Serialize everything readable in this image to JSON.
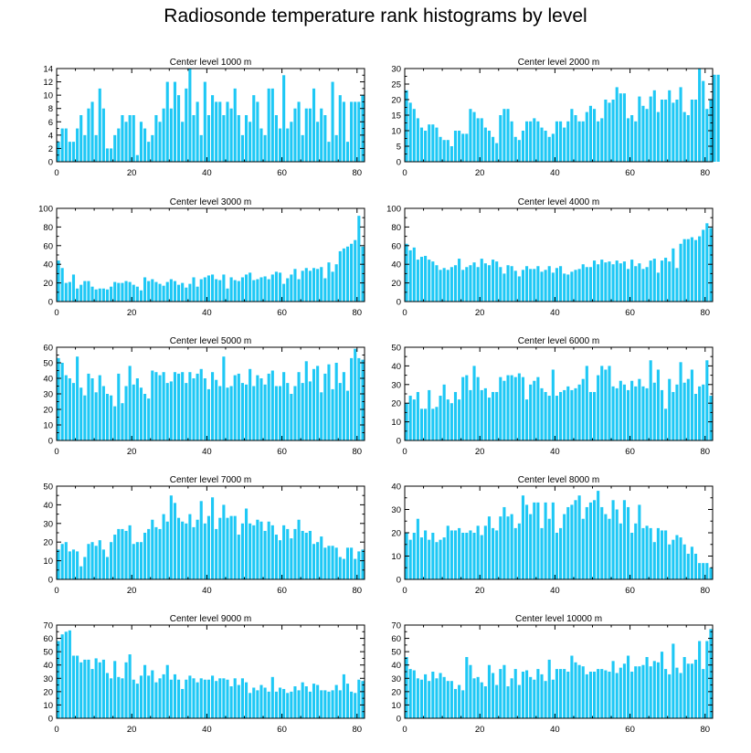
{
  "figure": {
    "title": "Radiosonde temperature rank histograms by level",
    "bar_color": "#1ec8f5",
    "axis_color": "#000000"
  },
  "chart_data": [
    {
      "type": "bar",
      "title": "Center level 1000 m",
      "x_start": 0,
      "ylim": [
        0,
        14
      ],
      "yticks": [
        0,
        2,
        4,
        6,
        8,
        10,
        12,
        14
      ],
      "xlim": [
        0,
        82
      ],
      "xticks": [
        0,
        20,
        40,
        60,
        80
      ],
      "xlabel": "",
      "ylabel": "",
      "values": [
        3,
        5,
        5,
        3,
        3,
        5,
        7,
        4,
        8,
        9,
        4,
        11,
        8,
        2,
        2,
        4,
        5,
        7,
        6,
        7,
        7,
        1,
        6,
        5,
        3,
        4,
        7,
        6,
        8,
        12,
        8,
        12,
        10,
        6,
        11,
        14,
        7,
        9,
        4,
        12,
        7,
        10,
        9,
        9,
        7,
        9,
        8,
        11,
        7,
        4,
        7,
        6,
        10,
        9,
        5,
        4,
        11,
        11,
        7,
        5,
        13,
        5,
        6,
        8,
        9,
        4,
        8,
        8,
        11,
        6,
        8,
        7,
        3,
        12,
        4,
        10,
        9,
        3,
        9,
        9,
        9,
        10
      ]
    },
    {
      "type": "bar",
      "title": "Center level 2000 m",
      "x_start": 0,
      "ylim": [
        0,
        30
      ],
      "yticks": [
        0,
        5,
        10,
        15,
        20,
        25,
        30
      ],
      "xlim": [
        0,
        82
      ],
      "xticks": [
        0,
        20,
        40,
        60,
        80
      ],
      "xlabel": "",
      "ylabel": "",
      "values": [
        23,
        19,
        17,
        14,
        11,
        10,
        12,
        12,
        11,
        8,
        7,
        7,
        5,
        10,
        10,
        9,
        9,
        17,
        16,
        14,
        14,
        11,
        10,
        8,
        6,
        15,
        17,
        17,
        13,
        8,
        7,
        10,
        13,
        13,
        14,
        13,
        11,
        10,
        8,
        9,
        13,
        13,
        11,
        13,
        17,
        15,
        13,
        13,
        16,
        18,
        17,
        13,
        14,
        20,
        19,
        20,
        24,
        22,
        22,
        14,
        15,
        13,
        21,
        18,
        17,
        21,
        23,
        16,
        20,
        20,
        23,
        19,
        20,
        24,
        16,
        15,
        20,
        20,
        30,
        26,
        17,
        20,
        28,
        28
      ]
    },
    {
      "type": "bar",
      "title": "Center level 3000 m",
      "x_start": 0,
      "ylim": [
        0,
        100
      ],
      "yticks": [
        0,
        20,
        40,
        60,
        80,
        100
      ],
      "xlim": [
        0,
        82
      ],
      "xticks": [
        0,
        20,
        40,
        60,
        80
      ],
      "xlabel": "",
      "ylabel": "",
      "values": [
        44,
        36,
        20,
        21,
        29,
        14,
        18,
        22,
        22,
        16,
        13,
        14,
        14,
        13,
        16,
        21,
        20,
        20,
        22,
        21,
        18,
        16,
        12,
        26,
        22,
        24,
        21,
        19,
        17,
        21,
        24,
        22,
        18,
        20,
        15,
        19,
        26,
        16,
        24,
        26,
        28,
        29,
        24,
        23,
        29,
        14,
        26,
        23,
        22,
        26,
        29,
        31,
        23,
        24,
        26,
        27,
        24,
        29,
        32,
        31,
        19,
        25,
        29,
        35,
        24,
        33,
        36,
        33,
        36,
        35,
        37,
        25,
        42,
        32,
        40,
        54,
        57,
        59,
        62,
        66,
        92,
        59
      ]
    },
    {
      "type": "bar",
      "title": "Center level 4000 m",
      "x_start": 0,
      "ylim": [
        0,
        100
      ],
      "yticks": [
        0,
        20,
        40,
        60,
        80,
        100
      ],
      "xlim": [
        0,
        82
      ],
      "xticks": [
        0,
        20,
        40,
        60,
        80
      ],
      "xlabel": "",
      "ylabel": "",
      "values": [
        62,
        55,
        58,
        45,
        48,
        49,
        45,
        43,
        39,
        34,
        36,
        34,
        37,
        39,
        46,
        34,
        37,
        39,
        42,
        37,
        46,
        41,
        39,
        45,
        43,
        37,
        30,
        39,
        38,
        33,
        27,
        34,
        38,
        35,
        35,
        38,
        32,
        34,
        38,
        31,
        36,
        38,
        30,
        29,
        32,
        34,
        35,
        40,
        37,
        37,
        44,
        40,
        45,
        42,
        43,
        40,
        44,
        41,
        43,
        35,
        45,
        38,
        41,
        35,
        37,
        44,
        46,
        31,
        44,
        47,
        43,
        57,
        36,
        62,
        67,
        67,
        69,
        66,
        70,
        77,
        84,
        79
      ]
    },
    {
      "type": "bar",
      "title": "Center level 5000 m",
      "x_start": 0,
      "ylim": [
        0,
        60
      ],
      "yticks": [
        0,
        10,
        20,
        30,
        40,
        50,
        60
      ],
      "xlim": [
        0,
        82
      ],
      "xticks": [
        0,
        20,
        40,
        60,
        80
      ],
      "xlabel": "",
      "ylabel": "",
      "values": [
        53,
        50,
        42,
        40,
        37,
        54,
        34,
        29,
        43,
        40,
        31,
        42,
        35,
        30,
        29,
        22,
        43,
        24,
        35,
        48,
        36,
        40,
        34,
        30,
        27,
        45,
        44,
        42,
        44,
        37,
        38,
        44,
        43,
        44,
        37,
        44,
        40,
        43,
        46,
        40,
        33,
        44,
        39,
        35,
        54,
        34,
        35,
        42,
        43,
        37,
        36,
        46,
        35,
        42,
        40,
        36,
        43,
        45,
        35,
        35,
        44,
        37,
        30,
        35,
        44,
        37,
        51,
        38,
        46,
        48,
        31,
        43,
        49,
        33,
        50,
        37,
        44,
        32,
        53,
        59,
        53,
        52
      ]
    },
    {
      "type": "bar",
      "title": "Center level 6000 m",
      "x_start": 0,
      "ylim": [
        0,
        50
      ],
      "yticks": [
        0,
        10,
        20,
        30,
        40,
        50
      ],
      "xlim": [
        0,
        82
      ],
      "xticks": [
        0,
        20,
        40,
        60,
        80
      ],
      "xlabel": "",
      "ylabel": "",
      "values": [
        20,
        24,
        22,
        26,
        17,
        17,
        27,
        17,
        18,
        24,
        30,
        22,
        20,
        26,
        22,
        34,
        35,
        27,
        40,
        34,
        27,
        28,
        23,
        26,
        26,
        34,
        32,
        35,
        35,
        34,
        36,
        34,
        22,
        30,
        32,
        34,
        28,
        26,
        24,
        38,
        24,
        26,
        27,
        29,
        27,
        28,
        30,
        33,
        40,
        26,
        26,
        35,
        40,
        38,
        40,
        29,
        28,
        32,
        30,
        27,
        32,
        29,
        33,
        29,
        28,
        43,
        31,
        38,
        27,
        17,
        33,
        26,
        30,
        42,
        31,
        33,
        38,
        25,
        29,
        30,
        43,
        24
      ]
    },
    {
      "type": "bar",
      "title": "Center level 7000 m",
      "x_start": 0,
      "ylim": [
        0,
        50
      ],
      "yticks": [
        0,
        10,
        20,
        30,
        40,
        50
      ],
      "xlim": [
        0,
        82
      ],
      "xticks": [
        0,
        20,
        40,
        60,
        80
      ],
      "xlabel": "",
      "ylabel": "",
      "values": [
        16,
        19,
        20,
        15,
        16,
        15,
        7,
        12,
        19,
        20,
        18,
        21,
        16,
        12,
        20,
        24,
        27,
        27,
        26,
        29,
        19,
        20,
        20,
        25,
        27,
        32,
        28,
        27,
        35,
        31,
        45,
        41,
        33,
        31,
        30,
        35,
        28,
        32,
        42,
        30,
        34,
        44,
        27,
        33,
        40,
        33,
        34,
        34,
        24,
        30,
        38,
        30,
        29,
        32,
        31,
        26,
        31,
        29,
        24,
        21,
        29,
        27,
        22,
        27,
        32,
        26,
        25,
        26,
        19,
        20,
        23,
        17,
        18,
        18,
        17,
        12,
        11,
        17,
        17,
        11,
        15,
        16
      ]
    },
    {
      "type": "bar",
      "title": "Center level 8000 m",
      "x_start": 0,
      "ylim": [
        0,
        40
      ],
      "yticks": [
        0,
        10,
        20,
        30,
        40
      ],
      "xlim": [
        0,
        82
      ],
      "xticks": [
        0,
        20,
        40,
        60,
        80
      ],
      "xlabel": "",
      "ylabel": "",
      "values": [
        20,
        17,
        20,
        26,
        18,
        21,
        17,
        20,
        16,
        17,
        18,
        23,
        21,
        21,
        22,
        20,
        20,
        21,
        20,
        23,
        19,
        23,
        27,
        22,
        21,
        27,
        31,
        27,
        28,
        22,
        24,
        36,
        32,
        28,
        33,
        33,
        22,
        33,
        26,
        33,
        20,
        22,
        28,
        31,
        32,
        34,
        36,
        26,
        31,
        33,
        34,
        38,
        31,
        28,
        26,
        34,
        30,
        24,
        34,
        31,
        20,
        24,
        32,
        22,
        23,
        22,
        16,
        22,
        21,
        21,
        15,
        17,
        19,
        18,
        15,
        11,
        14,
        11,
        7,
        7,
        7,
        5
      ]
    },
    {
      "type": "bar",
      "title": "Center level 9000 m",
      "x_start": 0,
      "ylim": [
        0,
        70
      ],
      "yticks": [
        0,
        10,
        20,
        30,
        40,
        50,
        60,
        70
      ],
      "xlim": [
        0,
        82
      ],
      "xticks": [
        0,
        20,
        40,
        60,
        80
      ],
      "xlabel": "",
      "ylabel": "",
      "values": [
        58,
        63,
        65,
        66,
        47,
        47,
        42,
        44,
        44,
        37,
        45,
        42,
        44,
        34,
        30,
        43,
        31,
        30,
        42,
        48,
        29,
        26,
        32,
        40,
        32,
        36,
        27,
        30,
        33,
        40,
        29,
        33,
        29,
        22,
        29,
        32,
        30,
        27,
        30,
        29,
        29,
        32,
        28,
        30,
        30,
        29,
        24,
        30,
        25,
        30,
        27,
        19,
        23,
        21,
        25,
        23,
        20,
        31,
        20,
        23,
        22,
        19,
        20,
        24,
        21,
        27,
        24,
        20,
        26,
        25,
        21,
        21,
        20,
        21,
        25,
        21,
        33,
        26,
        20,
        19,
        29,
        28
      ]
    },
    {
      "type": "bar",
      "title": "Center level 10000 m",
      "x_start": 0,
      "ylim": [
        0,
        70
      ],
      "yticks": [
        0,
        10,
        20,
        30,
        40,
        50,
        60,
        70
      ],
      "xlim": [
        0,
        82
      ],
      "xticks": [
        0,
        20,
        40,
        60,
        80
      ],
      "xlabel": "",
      "ylabel": "",
      "values": [
        46,
        37,
        36,
        30,
        29,
        33,
        28,
        35,
        30,
        34,
        31,
        28,
        28,
        22,
        25,
        21,
        46,
        40,
        30,
        31,
        27,
        24,
        40,
        34,
        25,
        37,
        40,
        24,
        30,
        37,
        25,
        35,
        36,
        31,
        29,
        37,
        33,
        28,
        44,
        29,
        37,
        37,
        37,
        35,
        47,
        42,
        40,
        39,
        33,
        35,
        35,
        37,
        37,
        36,
        35,
        43,
        34,
        38,
        41,
        47,
        35,
        39,
        39,
        40,
        46,
        39,
        43,
        42,
        50,
        37,
        33,
        56,
        38,
        34,
        46,
        41,
        41,
        44,
        58,
        37,
        58,
        67
      ]
    }
  ]
}
